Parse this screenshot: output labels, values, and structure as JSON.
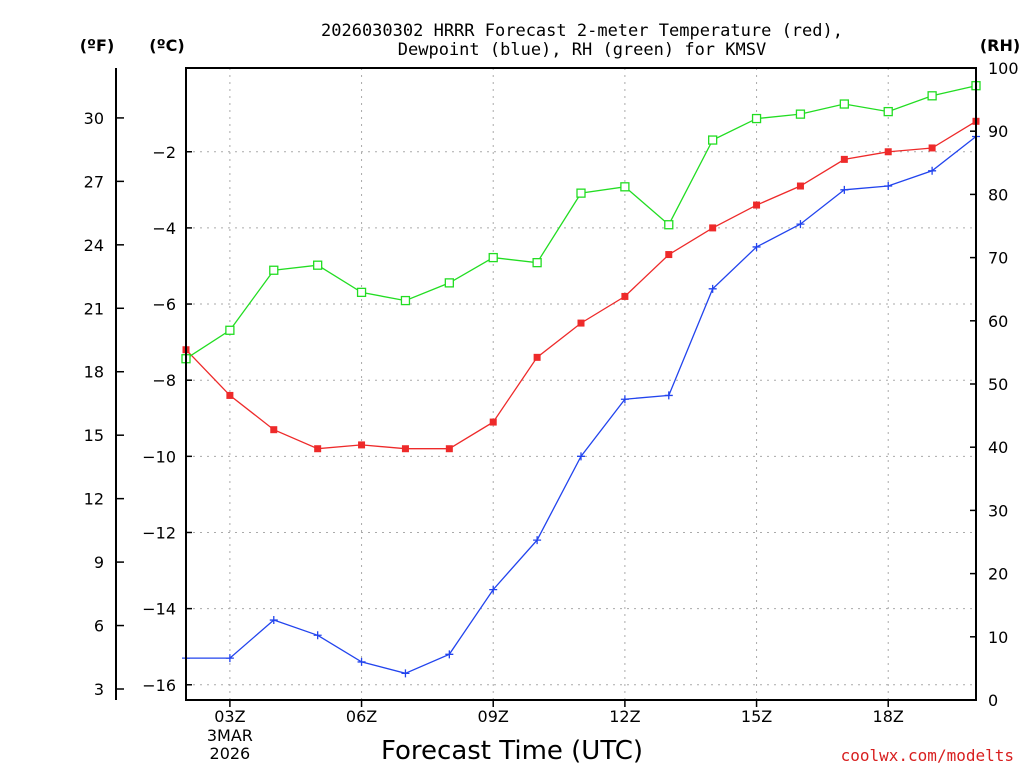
{
  "colors": {
    "temperature": "#ee2a2a",
    "dewpoint": "#2244ee",
    "rh": "#22dd22",
    "grid": "#aaaaaa",
    "credit": "#d81f1f"
  },
  "chart_data": {
    "type": "line",
    "title_line1": "2026030302 HRRR Forecast 2-meter Temperature (red),",
    "title_line2": "Dewpoint (blue), RH (green) for KMSV",
    "xlabel": "Forecast Time (UTC)",
    "credit": "coolwx.com/modelts",
    "unit_labels": {
      "fahrenheit": "(ºF)",
      "celsius": "(ºC)",
      "rh": "(RH)"
    },
    "x_hours": [
      2,
      3,
      4,
      5,
      6,
      7,
      8,
      9,
      10,
      11,
      12,
      13,
      14,
      15,
      16,
      17,
      18,
      19,
      20
    ],
    "xlim": [
      2,
      20
    ],
    "x_ticks": [
      {
        "hour": 3,
        "label": "03Z",
        "extra": [
          "3MAR",
          "2026"
        ]
      },
      {
        "hour": 6,
        "label": "06Z"
      },
      {
        "hour": 9,
        "label": "09Z"
      },
      {
        "hour": 12,
        "label": "12Z"
      },
      {
        "hour": 15,
        "label": "15Z"
      },
      {
        "hour": 18,
        "label": "18Z"
      }
    ],
    "celsius_range": [
      -16.4,
      0.2
    ],
    "celsius_ticks": [
      -2,
      -4,
      -6,
      -8,
      -10,
      -12,
      -14,
      -16
    ],
    "celsius_tick_labels": [
      "−2",
      "−4",
      "−6",
      "−8",
      "−10",
      "−12",
      "−14",
      "−16"
    ],
    "fahrenheit_ticks": [
      30,
      27,
      24,
      21,
      18,
      15,
      12,
      9,
      6,
      3
    ],
    "rh_range": [
      0,
      100
    ],
    "rh_ticks": [
      100,
      90,
      80,
      70,
      60,
      50,
      40,
      30,
      20,
      10,
      0
    ],
    "series": [
      {
        "name": "Temperature (°C)",
        "key": "temperature",
        "axis": "celsius",
        "marker": "filled-square",
        "values": [
          -7.2,
          -8.4,
          -9.3,
          -9.8,
          -9.7,
          -9.8,
          -9.8,
          -9.1,
          -7.4,
          -6.5,
          -5.8,
          -4.7,
          -4.0,
          -3.4,
          -2.9,
          -2.2,
          -2.0,
          -1.9,
          -1.2
        ]
      },
      {
        "name": "Dewpoint (°C)",
        "key": "dewpoint",
        "axis": "celsius",
        "marker": "plus",
        "values": [
          -15.3,
          -15.3,
          -14.3,
          -14.7,
          -15.4,
          -15.7,
          -15.2,
          -13.5,
          -12.2,
          -10.0,
          -8.5,
          -8.4,
          -5.6,
          -4.5,
          -3.9,
          -3.0,
          -2.9,
          -2.5,
          -1.6
        ]
      },
      {
        "name": "RH (%)",
        "key": "rh",
        "axis": "rh",
        "marker": "open-square",
        "values": [
          54,
          58.5,
          68,
          68.8,
          64.5,
          63.2,
          66,
          70,
          69.2,
          80.2,
          81.2,
          75.2,
          88.6,
          92,
          92.7,
          94.3,
          93.1,
          95.6,
          97.2
        ]
      }
    ]
  }
}
